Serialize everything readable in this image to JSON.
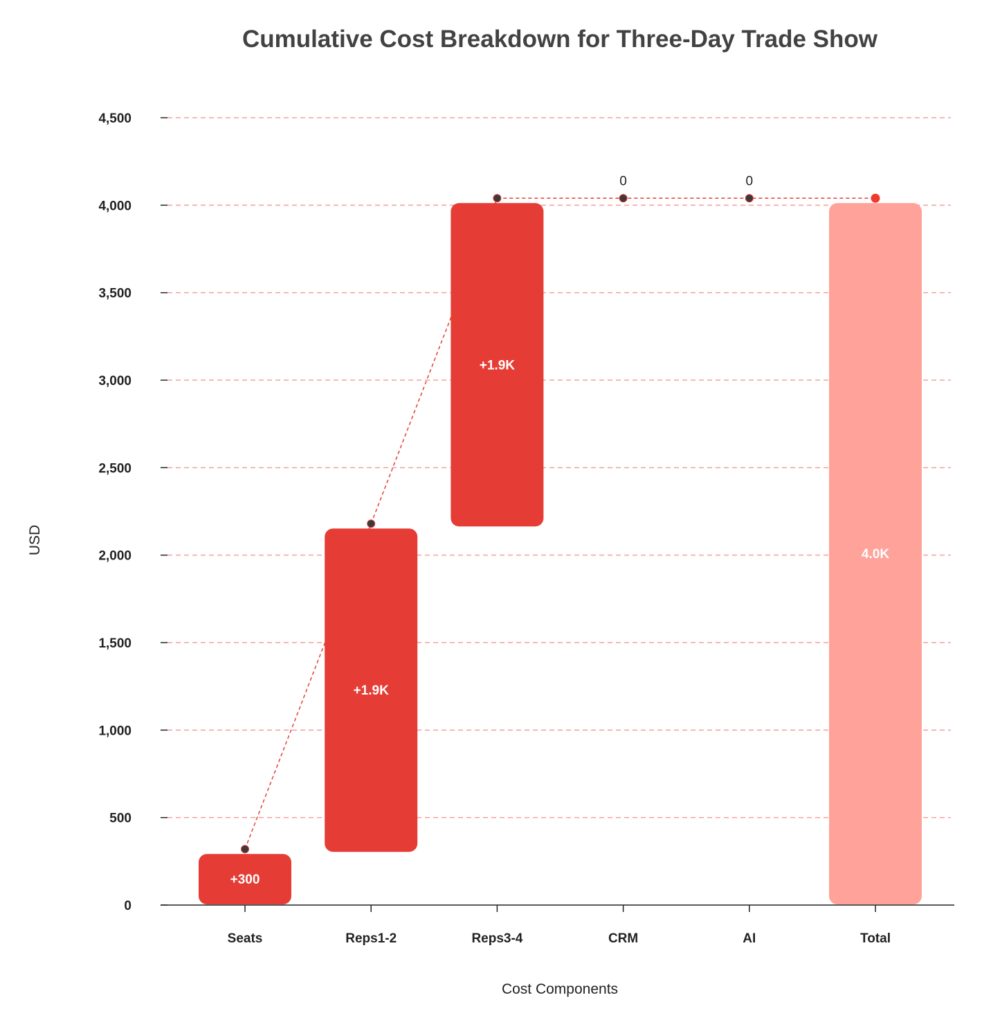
{
  "chart_data": {
    "type": "waterfall",
    "title": "Cumulative Cost Breakdown for Three-Day Trade Show",
    "xlabel": "Cost Components",
    "ylabel": "USD",
    "ylim": [
      0,
      4500
    ],
    "yticks": [
      0,
      500,
      1000,
      1500,
      2000,
      2500,
      3000,
      3500,
      4000,
      4500
    ],
    "ytick_labels": [
      "0",
      "500",
      "1,000",
      "1,500",
      "2,000",
      "2,500",
      "3,000",
      "3,500",
      "4,000",
      "4,500"
    ],
    "grid": true,
    "categories": [
      "Seats",
      "Reps1-2",
      "Reps3-4",
      "CRM",
      "AI",
      "Total"
    ],
    "steps": [
      {
        "category": "Seats",
        "value": 300,
        "start": 0,
        "end": 300,
        "label": "+300",
        "kind": "increase"
      },
      {
        "category": "Reps1-2",
        "value": 1860,
        "start": 300,
        "end": 2160,
        "label": "+1.9K",
        "kind": "increase"
      },
      {
        "category": "Reps3-4",
        "value": 1860,
        "start": 2160,
        "end": 4020,
        "label": "+1.9K",
        "kind": "increase"
      },
      {
        "category": "CRM",
        "value": 0,
        "start": 4020,
        "end": 4020,
        "label": "0",
        "kind": "zero"
      },
      {
        "category": "AI",
        "value": 0,
        "start": 4020,
        "end": 4020,
        "label": "0",
        "kind": "zero"
      },
      {
        "category": "Total",
        "value": 4020,
        "start": 0,
        "end": 4020,
        "label": "4.0K",
        "kind": "total"
      }
    ],
    "colors": {
      "increase": "#e53d35",
      "total": "#ffa29a",
      "grid": "#f3a09a",
      "connector": "#e53d35",
      "marker": "#3a3a3a",
      "total_marker": "#f0392f",
      "title": "#424242",
      "axis": "#222222"
    }
  }
}
